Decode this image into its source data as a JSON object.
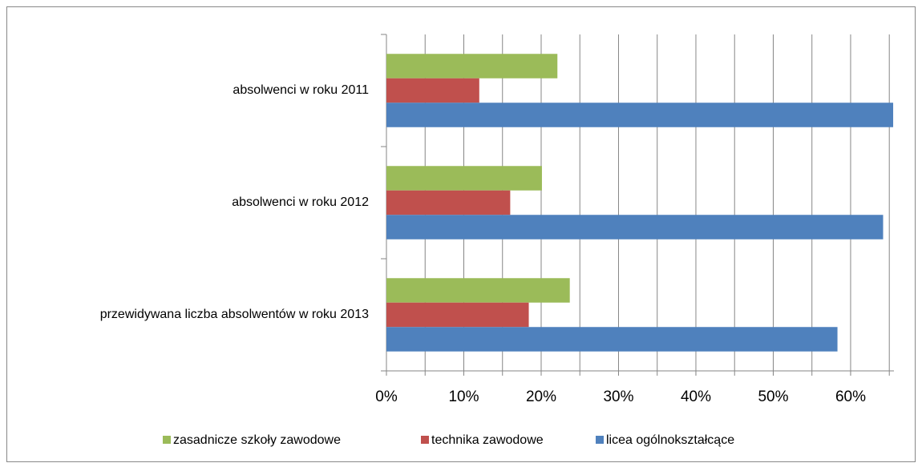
{
  "chart_data": {
    "type": "hbar",
    "categories": [
      "absolwenci w roku 2011",
      "absolwenci w roku 2012",
      "przewidywana liczba absolwentów w roku 2013"
    ],
    "series": [
      {
        "name": "zasadnicze szkoły zawodowe",
        "color": "#9bbb59",
        "values": [
          22.1,
          20.1,
          23.7
        ]
      },
      {
        "name": "technika zawodowe",
        "color": "#c0504d",
        "values": [
          12,
          16,
          18.4
        ]
      },
      {
        "name": "licea ogólnokształcące",
        "color": "#4f81bd",
        "values": [
          65.5,
          64.2,
          58.3
        ]
      }
    ],
    "xlim": [
      0,
      65.6
    ],
    "xticks": [
      {
        "value": 0,
        "label": "0%"
      },
      {
        "value": 10,
        "label": "10%"
      },
      {
        "value": 20,
        "label": "20%"
      },
      {
        "value": 30,
        "label": "30%"
      },
      {
        "value": 40,
        "label": "40%"
      },
      {
        "value": 50,
        "label": "50%"
      },
      {
        "value": 60,
        "label": "60%"
      }
    ],
    "xgrid": [
      5,
      10,
      15,
      20,
      25,
      30,
      35,
      40,
      45,
      50,
      55,
      60,
      65
    ],
    "grid": true,
    "legend": "bottom"
  }
}
